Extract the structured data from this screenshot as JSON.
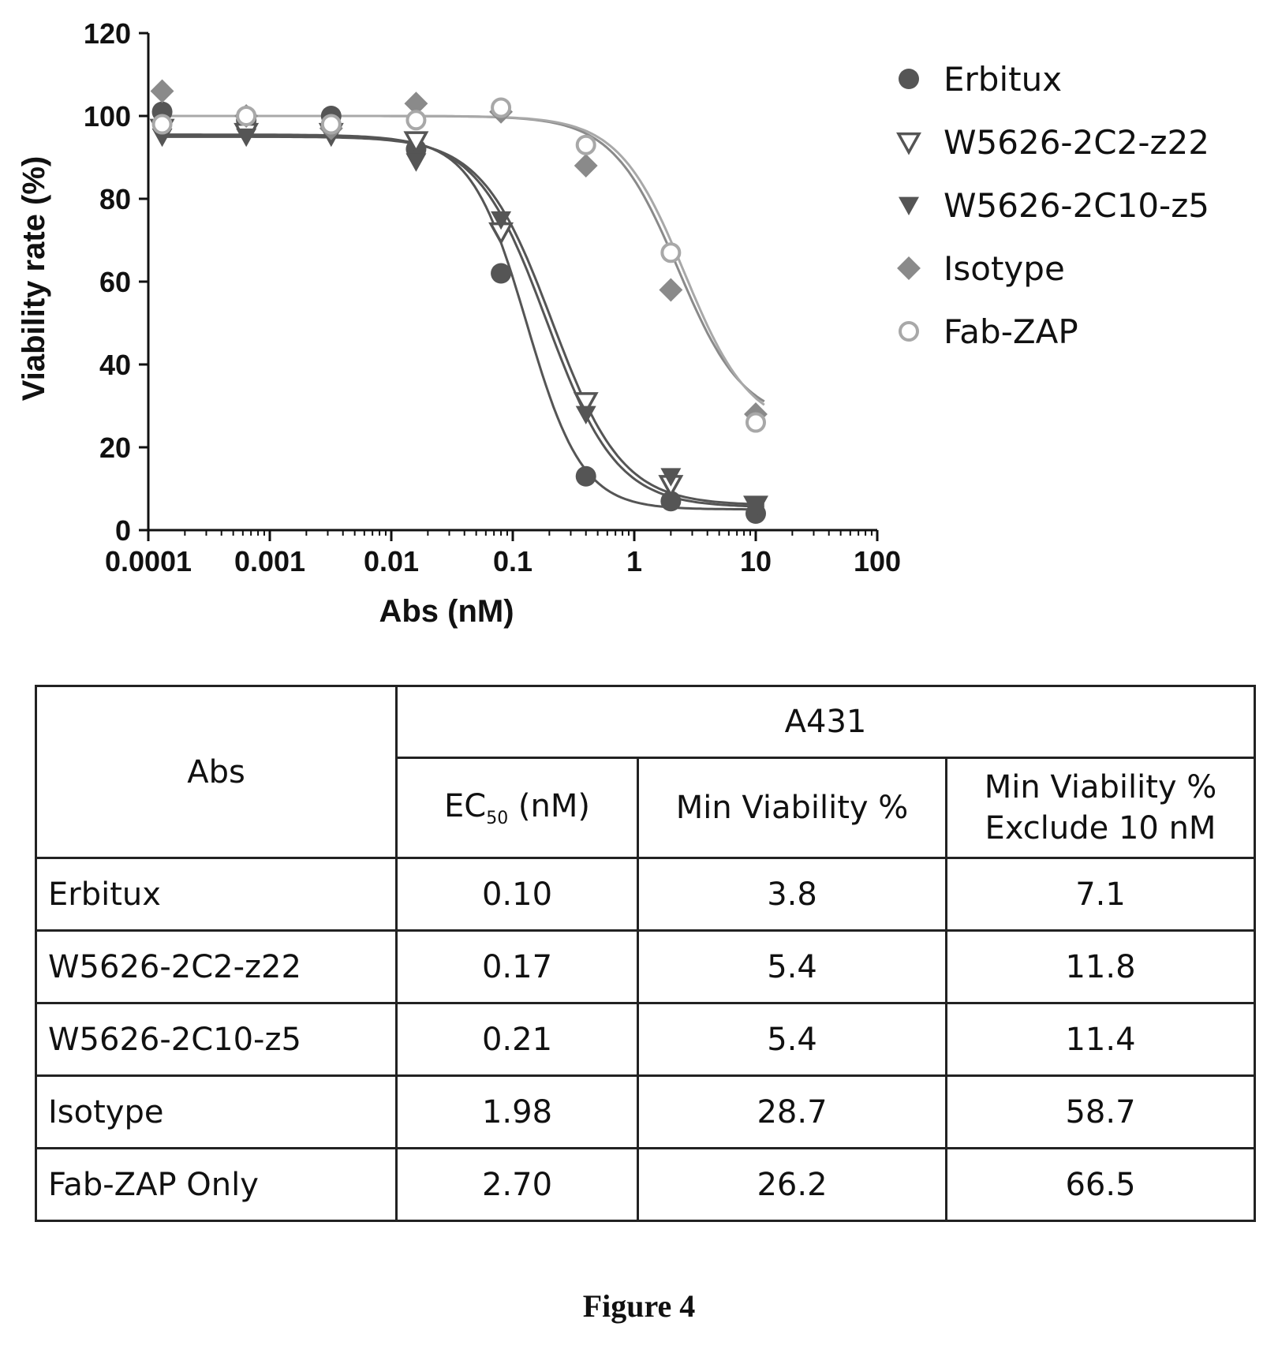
{
  "chart_data": {
    "type": "scatter",
    "xlabel": "Abs (nM)",
    "ylabel": "Viability rate (%)",
    "xscale": "log",
    "xlim": [
      0.0001,
      100
    ],
    "ylim": [
      0,
      120
    ],
    "x_ticks": [
      "0.0001",
      "0.001",
      "0.01",
      "0.1",
      "1",
      "10",
      "100"
    ],
    "y_ticks": [
      "0",
      "20",
      "40",
      "60",
      "80",
      "100",
      "120"
    ],
    "grid": false,
    "legend_position": "top-right",
    "x": [
      0.00013,
      0.00064,
      0.0032,
      0.016,
      0.08,
      0.4,
      2,
      10
    ],
    "series": [
      {
        "name": "Erbitux",
        "marker": "circle-filled",
        "color": "#555555",
        "values": [
          101,
          99,
          100,
          92,
          62,
          13,
          7,
          4
        ],
        "fit": {
          "top": 95,
          "bottom": 5,
          "ec50": 0.13,
          "hill": 1.9
        }
      },
      {
        "name": "W5626-2C2-z22",
        "marker": "triangle-down-open",
        "color": "#555555",
        "values": [
          97,
          96,
          96,
          94,
          72,
          31,
          11,
          6
        ],
        "fit": {
          "top": 95.5,
          "bottom": 5.5,
          "ec50": 0.19,
          "hill": 1.5
        }
      },
      {
        "name": "W5626-2C10-z5",
        "marker": "triangle-down-filled",
        "color": "#555555",
        "values": [
          95,
          95,
          95,
          89,
          75,
          28,
          13,
          6
        ],
        "fit": {
          "top": 95,
          "bottom": 6,
          "ec50": 0.21,
          "hill": 1.5
        }
      },
      {
        "name": "Isotype",
        "marker": "diamond-filled",
        "color": "#8a8a8a",
        "values": [
          106,
          100,
          97,
          103,
          101,
          88,
          58,
          28
        ],
        "fit": {
          "top": 100,
          "bottom": 26,
          "ec50": 2.3,
          "hill": 1.6
        }
      },
      {
        "name": "Fab-ZAP",
        "marker": "circle-open",
        "color": "#a8a8a8",
        "values": [
          98,
          100,
          98,
          99,
          102,
          93,
          67,
          26
        ],
        "fit": {
          "top": 100,
          "bottom": 24,
          "ec50": 2.6,
          "hill": 1.6
        }
      }
    ]
  },
  "table": {
    "header_abs": "Abs",
    "header_group": "A431",
    "header_ec50_prefix": "EC",
    "header_ec50_sub": "50",
    "header_ec50_unit": " (nM)",
    "header_min": "Min Viability %",
    "header_min_excl_line1": "Min Viability %",
    "header_min_excl_line2": "Exclude 10 nM",
    "rows": [
      {
        "name": "Erbitux",
        "ec50": "0.10",
        "min": "3.8",
        "min_excl": "7.1"
      },
      {
        "name": "W5626-2C2-z22",
        "ec50": "0.17",
        "min": "5.4",
        "min_excl": "11.8"
      },
      {
        "name": "W5626-2C10-z5",
        "ec50": "0.21",
        "min": "5.4",
        "min_excl": "11.4"
      },
      {
        "name": "Isotype",
        "ec50": "1.98",
        "min": "28.7",
        "min_excl": "58.7"
      },
      {
        "name": "Fab-ZAP Only",
        "ec50": "2.70",
        "min": "26.2",
        "min_excl": "66.5"
      }
    ]
  },
  "caption": "Figure 4"
}
